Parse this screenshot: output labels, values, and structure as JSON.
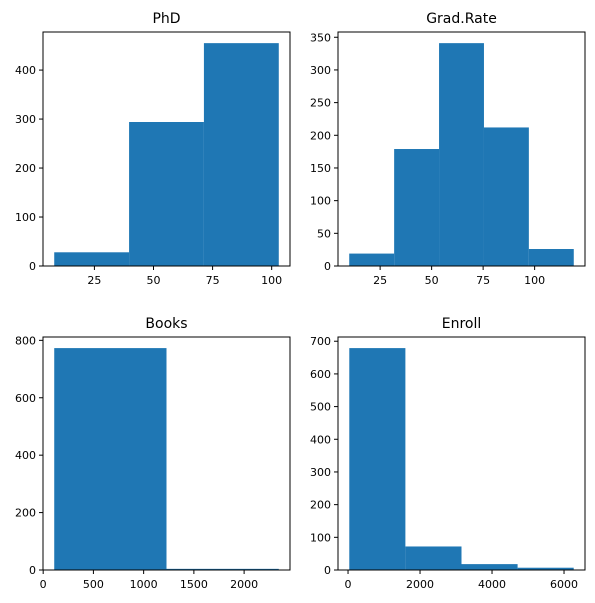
{
  "chart_data": [
    {
      "type": "bar",
      "title": "PhD",
      "bins": [
        [
          8,
          39.67
        ],
        [
          39.67,
          71.33
        ],
        [
          71.33,
          103
        ]
      ],
      "values": [
        28,
        294,
        455
      ],
      "xlim": [
        3.25,
        107.75
      ],
      "ylim": [
        0,
        477.75
      ],
      "xticks": [
        25,
        50,
        75,
        100
      ],
      "yticks": [
        0,
        100,
        200,
        300,
        400
      ]
    },
    {
      "type": "bar",
      "title": "Grad.Rate",
      "bins": [
        [
          10,
          31.8
        ],
        [
          31.8,
          53.6
        ],
        [
          53.6,
          75.4
        ],
        [
          75.4,
          97.2
        ],
        [
          97.2,
          119
        ]
      ],
      "values": [
        19,
        179,
        341,
        212,
        26
      ],
      "xlim": [
        4.55,
        124.45
      ],
      "ylim": [
        0,
        358.05
      ],
      "xticks": [
        25,
        50,
        75,
        100
      ],
      "yticks": [
        0,
        50,
        100,
        150,
        200,
        250,
        300,
        350
      ]
    },
    {
      "type": "bar",
      "title": "Books",
      "bins": [
        [
          110,
          1227.5
        ],
        [
          1227.5,
          2345
        ]
      ],
      "values": [
        773,
        4
      ],
      "xlim": [
        -1.75,
        2456.75
      ],
      "ylim": [
        0,
        811.65
      ],
      "xticks": [
        0,
        500,
        1000,
        1500,
        2000
      ],
      "yticks": [
        0,
        200,
        400,
        600,
        800
      ]
    },
    {
      "type": "bar",
      "title": "Enroll",
      "bins": [
        [
          35,
          1593.5
        ],
        [
          1593.5,
          3152
        ],
        [
          3152,
          4710.5
        ],
        [
          4710.5,
          6269
        ]
      ],
      "values": [
        679,
        72,
        18,
        7
      ],
      "xlim": [
        -278.7,
        6582.7
      ],
      "ylim": [
        0,
        712.95
      ],
      "xticks": [
        0,
        2000,
        4000,
        6000
      ],
      "yticks": [
        0,
        100,
        200,
        300,
        400,
        500,
        600,
        700
      ]
    }
  ],
  "colors": {
    "bar": "#1f77b4",
    "axis": "#000000"
  }
}
